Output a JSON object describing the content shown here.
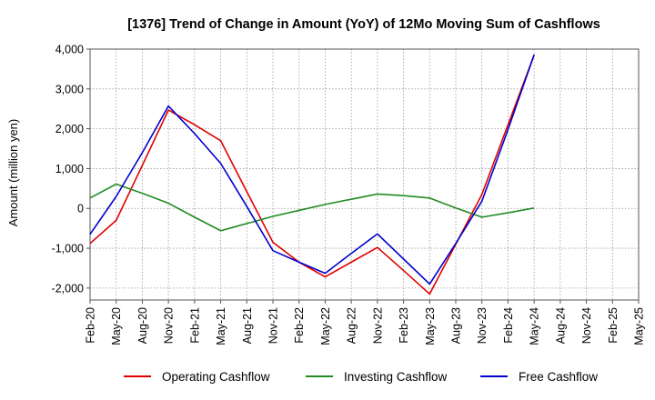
{
  "chart_data": {
    "type": "line",
    "title": "[1376]  Trend of Change in Amount (YoY) of 12Mo Moving Sum of Cashflows",
    "xlabel": "",
    "ylabel": "Amount (million yen)",
    "ylim": [
      -2300,
      4000
    ],
    "yticks": [
      -2000,
      -1000,
      0,
      1000,
      2000,
      3000,
      4000
    ],
    "ytick_labels": [
      "-2,000",
      "-1,000",
      "0",
      "1,000",
      "2,000",
      "3,000",
      "4,000"
    ],
    "categories": [
      "Feb-20",
      "May-20",
      "Aug-20",
      "Nov-20",
      "Feb-21",
      "May-21",
      "Aug-21",
      "Nov-21",
      "Feb-22",
      "May-22",
      "Aug-22",
      "Nov-22",
      "Feb-23",
      "May-23",
      "Aug-23",
      "Nov-23",
      "Feb-24",
      "May-24",
      "Aug-24",
      "Nov-24",
      "Feb-25",
      "May-25"
    ],
    "grid": true,
    "legend_position": "bottom",
    "series": [
      {
        "name": "Operating Cashflow",
        "color": "#e00000",
        "values": [
          -880,
          -300,
          1080,
          2470,
          2100,
          1700,
          420,
          -850,
          -1350,
          -1720,
          -1350,
          -980,
          -1560,
          -2150,
          -900,
          350,
          2100,
          3850,
          null,
          null,
          null,
          null
        ]
      },
      {
        "name": "Investing Cashflow",
        "color": "#228b22",
        "values": [
          260,
          610,
          380,
          130,
          -220,
          -560,
          -380,
          -200,
          -50,
          100,
          230,
          360,
          320,
          260,
          10,
          -220,
          -110,
          10,
          null,
          null,
          null,
          null
        ]
      },
      {
        "name": "Free Cashflow",
        "color": "#0000cc",
        "values": [
          -650,
          300,
          1400,
          2570,
          1880,
          1130,
          50,
          -1060,
          -1350,
          -1630,
          -1130,
          -640,
          -1270,
          -1900,
          -880,
          180,
          1980,
          3860,
          null,
          null,
          null,
          null
        ]
      }
    ]
  }
}
